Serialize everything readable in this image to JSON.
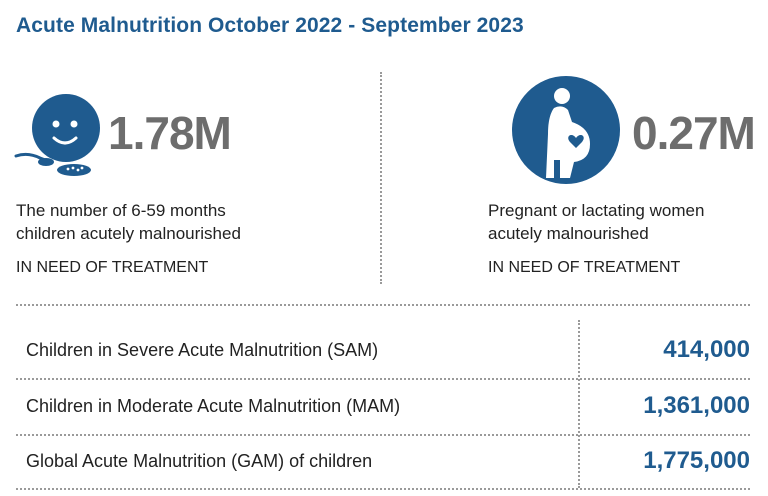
{
  "title": "Acute Malnutrition October 2022 - September 2023",
  "colors": {
    "accent": "#1f5b8f",
    "stat_gray": "#6d6d6d"
  },
  "stats": [
    {
      "icon": "child-eating-icon",
      "value": "1.78M",
      "description_line1": "The number of 6-59 months",
      "description_line2": "children acutely malnourished",
      "need": "IN NEED OF TREATMENT"
    },
    {
      "icon": "pregnant-woman-icon",
      "value": "0.27M",
      "description_line1": "Pregnant or lactating women",
      "description_line2": "acutely malnourished",
      "need": "IN NEED OF TREATMENT"
    }
  ],
  "table": {
    "rows": [
      {
        "label": "Children in Severe Acute Malnutrition (SAM)",
        "value": "414,000"
      },
      {
        "label": "Children in Moderate Acute Malnutrition (MAM)",
        "value": "1,361,000"
      },
      {
        "label": "Global Acute Malnutrition (GAM) of children",
        "value": "1,775,000"
      }
    ]
  }
}
